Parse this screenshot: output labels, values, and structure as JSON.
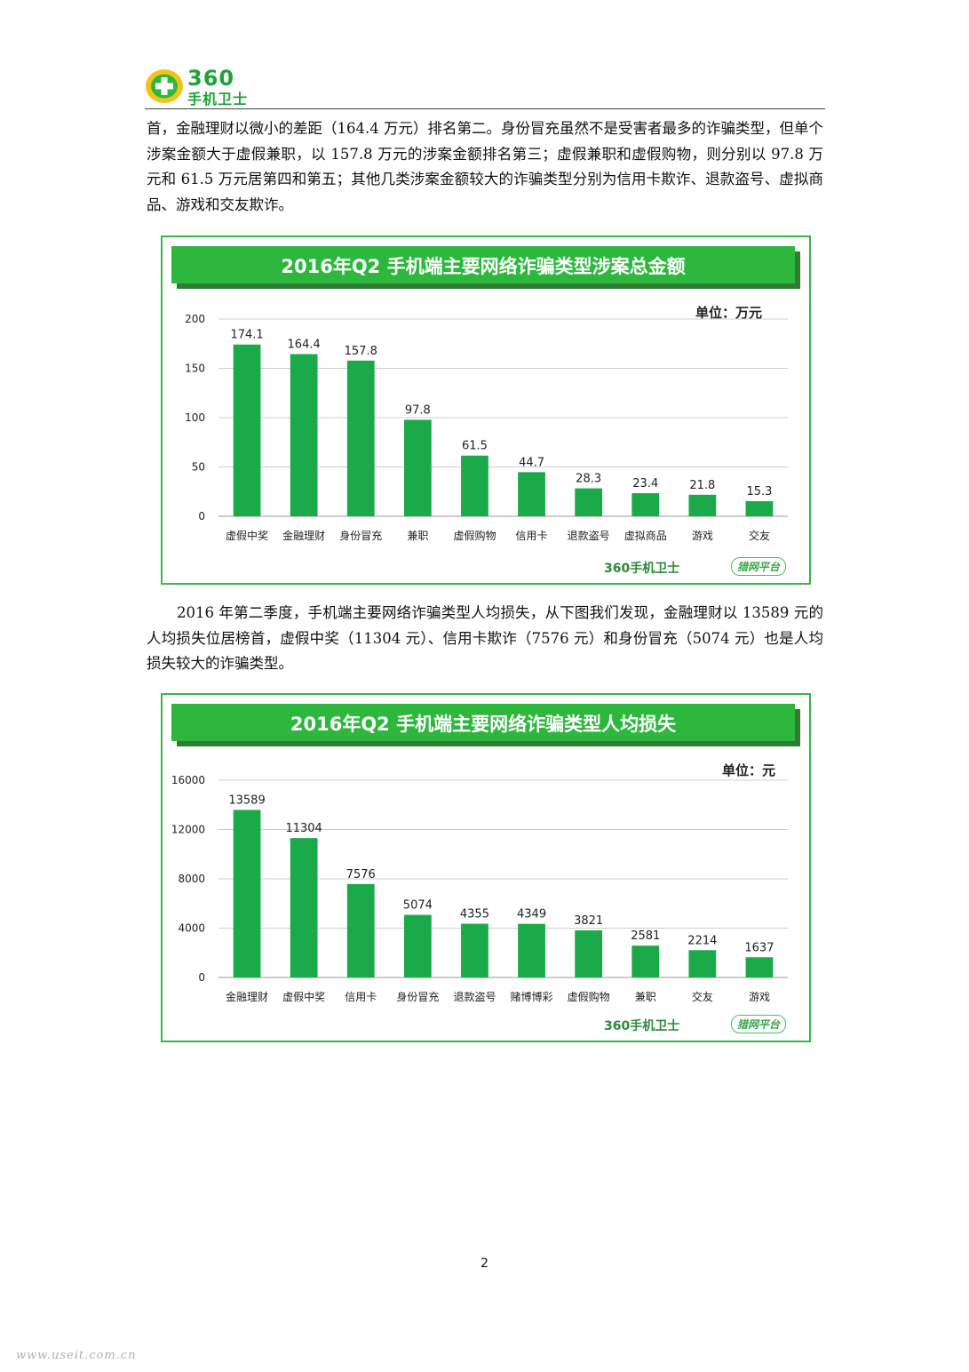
{
  "header": {
    "logo_number": "360",
    "logo_subtitle": "手机卫士"
  },
  "paragraph1": "首，金融理财以微小的差距（164.4 万元）排名第二。身份冒充虽然不是受害者最多的诈骗类型，但单个涉案金额大于虚假兼职，以 157.8 万元的涉案金额排名第三；虚假兼职和虚假购物，则分别以 97.8 万元和 61.5 万元居第四和第五；其他几类涉案金额较大的诈骗类型分别为信用卡欺诈、退款盗号、虚拟商品、游戏和交友欺诈。",
  "paragraph2": "2016 年第二季度，手机端主要网络诈骗类型人均损失，从下图我们发现，金融理财以 13589 元的人均损失位居榜首，虚假中奖（11304 元）、信用卡欺诈（7576 元）和身份冒充（5074 元）也是人均损失较大的诈骗类型。",
  "watermark": {
    "logo_text": "360手机卫士",
    "platform_text": "猎网平台"
  },
  "chart_data": [
    {
      "type": "bar",
      "title": "2016年Q2 手机端主要网络诈骗类型涉案总金额",
      "unit_label": "单位：万元",
      "categories": [
        "虚假中奖",
        "金融理财",
        "身份冒充",
        "兼职",
        "虚假购物",
        "信用卡",
        "退款盗号",
        "虚拟商品",
        "游戏",
        "交友"
      ],
      "values": [
        174.1,
        164.4,
        157.8,
        97.8,
        61.5,
        44.7,
        28.3,
        23.4,
        21.8,
        15.3
      ],
      "value_labels": [
        "174.1",
        "164.4",
        "157.8",
        "97.8",
        "61.5",
        "44.7",
        "28.3",
        "23.4",
        "21.8",
        "15.3"
      ],
      "ylim": [
        0,
        200
      ],
      "yticks": [
        "0",
        "50",
        "100",
        "150",
        "200"
      ],
      "grid": true,
      "bar_color": "#1aaa4a"
    },
    {
      "type": "bar",
      "title": "2016年Q2 手机端主要网络诈骗类型人均损失",
      "unit_label": "单位：元",
      "categories": [
        "金融理财",
        "虚假中奖",
        "信用卡",
        "身份冒充",
        "退款盗号",
        "赌博博彩",
        "虚假购物",
        "兼职",
        "交友",
        "游戏"
      ],
      "values": [
        13589,
        11304,
        7576,
        5074,
        4355,
        4349,
        3821,
        2581,
        2214,
        1637
      ],
      "value_labels": [
        "13589",
        "11304",
        "7576",
        "5074",
        "4355",
        "4349",
        "3821",
        "2581",
        "2214",
        "1637"
      ],
      "ylim": [
        0,
        16000
      ],
      "yticks": [
        "0",
        "4000",
        "8000",
        "12000",
        "16000"
      ],
      "grid": true,
      "bar_color": "#1aaa4a"
    }
  ],
  "page_number": "2",
  "footer_url": "www.useit.com.cn"
}
